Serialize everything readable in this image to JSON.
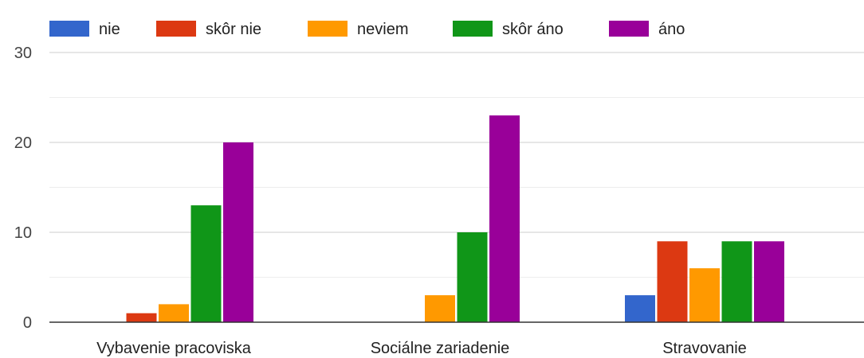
{
  "chart_data": {
    "type": "bar",
    "categories": [
      "Vybavenie pracoviska",
      "Sociálne zariadenie",
      "Stravovanie"
    ],
    "series": [
      {
        "name": "nie",
        "color": "#3366cc",
        "values": [
          0,
          0,
          3
        ]
      },
      {
        "name": "skôr nie",
        "color": "#dc3912",
        "values": [
          1,
          0,
          9
        ]
      },
      {
        "name": "neviem",
        "color": "#ff9900",
        "values": [
          2,
          3,
          6
        ]
      },
      {
        "name": "skôr áno",
        "color": "#109618",
        "values": [
          13,
          10,
          9
        ]
      },
      {
        "name": "áno",
        "color": "#990099",
        "values": [
          20,
          23,
          9
        ]
      }
    ],
    "ylim": [
      0,
      30
    ],
    "yticks": [
      0,
      10,
      20,
      30
    ],
    "minor_gridlines": [
      5,
      15,
      25
    ],
    "legend_position": "top",
    "grid": true
  }
}
